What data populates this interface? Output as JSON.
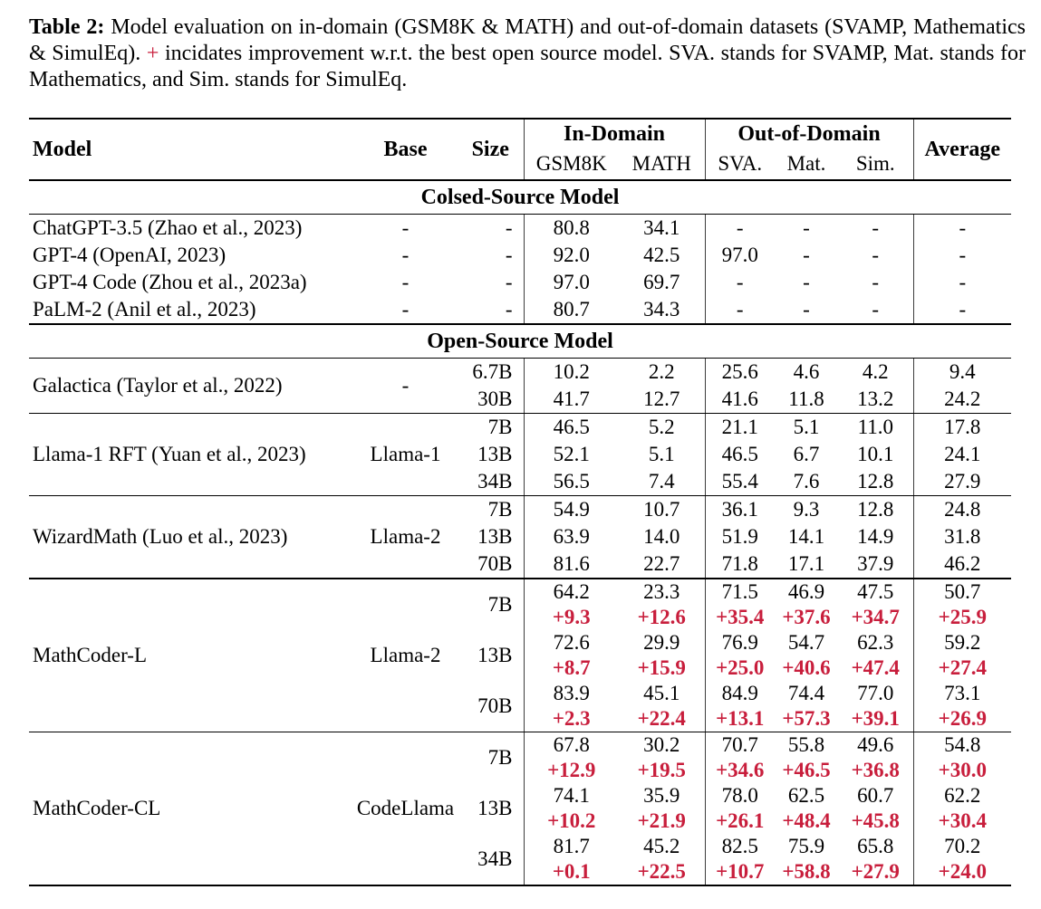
{
  "caption": {
    "label": "Table 2:",
    "before_plus": "Model evaluation on in-domain (GSM8K & MATH) and out-of-domain datasets (SVAMP, Mathematics & SimulEq).",
    "plus": "+",
    "after_plus": "incidates improvement w.r.t. the best open source model. SVA. stands for SVAMP, Mat. stands for Mathematics, and Sim. stands for SimulEq."
  },
  "colors": {
    "improvement_red": "#c81e3c",
    "text": "#000000",
    "rule": "#000000"
  },
  "table": {
    "header": {
      "model": "Model",
      "base": "Base",
      "size": "Size",
      "in_domain": "In-Domain",
      "out_of_domain": "Out-of-Domain",
      "average": "Average",
      "sub": {
        "gsm8k": "GSM8K",
        "math": "MATH",
        "sva": "SVA.",
        "mat": "Mat.",
        "sim": "Sim."
      }
    },
    "dataset_columns": [
      "GSM8K",
      "MATH",
      "SVA.",
      "Mat.",
      "Sim.",
      "Average"
    ],
    "sections": [
      {
        "title": "Colsed-Source Model",
        "groups": [
          {
            "model": "ChatGPT-3.5 (Zhao et al., 2023)",
            "base": "-",
            "rule_below": "none",
            "rows": [
              {
                "size": "-",
                "values": [
                  "80.8",
                  "34.1",
                  "-",
                  "-",
                  "-",
                  "-"
                ]
              }
            ]
          },
          {
            "model": "GPT-4 (OpenAI, 2023)",
            "base": "-",
            "rule_below": "none",
            "rows": [
              {
                "size": "-",
                "values": [
                  "92.0",
                  "42.5",
                  "97.0",
                  "-",
                  "-",
                  "-"
                ]
              }
            ]
          },
          {
            "model": "GPT-4 Code (Zhou et al., 2023a)",
            "base": "-",
            "rule_below": "none",
            "rows": [
              {
                "size": "-",
                "values": [
                  "97.0",
                  "69.7",
                  "-",
                  "-",
                  "-",
                  "-"
                ]
              }
            ]
          },
          {
            "model": "PaLM-2 (Anil et al., 2023)",
            "base": "-",
            "rule_below": "thick",
            "rows": [
              {
                "size": "-",
                "values": [
                  "80.7",
                  "34.3",
                  "-",
                  "-",
                  "-",
                  "-"
                ]
              }
            ]
          }
        ]
      },
      {
        "title": "Open-Source Model",
        "groups": [
          {
            "model": "Galactica (Taylor et al., 2022)",
            "base": "-",
            "rule_below": "thin",
            "rows": [
              {
                "size": "6.7B",
                "values": [
                  "10.2",
                  "2.2",
                  "25.6",
                  "4.6",
                  "4.2",
                  "9.4"
                ]
              },
              {
                "size": "30B",
                "values": [
                  "41.7",
                  "12.7",
                  "41.6",
                  "11.8",
                  "13.2",
                  "24.2"
                ]
              }
            ]
          },
          {
            "model": "Llama-1 RFT (Yuan et al., 2023)",
            "base": "Llama-1",
            "rule_below": "thin",
            "rows": [
              {
                "size": "7B",
                "values": [
                  "46.5",
                  "5.2",
                  "21.1",
                  "5.1",
                  "11.0",
                  "17.8"
                ]
              },
              {
                "size": "13B",
                "values": [
                  "52.1",
                  "5.1",
                  "46.5",
                  "6.7",
                  "10.1",
                  "24.1"
                ]
              },
              {
                "size": "34B",
                "values": [
                  "56.5",
                  "7.4",
                  "55.4",
                  "7.6",
                  "12.8",
                  "27.9"
                ]
              }
            ]
          },
          {
            "model": "WizardMath (Luo et al., 2023)",
            "base": "Llama-2",
            "rule_below": "thick",
            "rows": [
              {
                "size": "7B",
                "values": [
                  "54.9",
                  "10.7",
                  "36.1",
                  "9.3",
                  "12.8",
                  "24.8"
                ]
              },
              {
                "size": "13B",
                "values": [
                  "63.9",
                  "14.0",
                  "51.9",
                  "14.1",
                  "14.9",
                  "31.8"
                ]
              },
              {
                "size": "70B",
                "values": [
                  "81.6",
                  "22.7",
                  "71.8",
                  "17.1",
                  "37.9",
                  "46.2"
                ]
              }
            ]
          },
          {
            "model": "MathCoder-L",
            "base": "Llama-2",
            "rule_below": "thin",
            "rows": [
              {
                "size": "7B",
                "values": [
                  "64.2",
                  "23.3",
                  "71.5",
                  "46.9",
                  "47.5",
                  "50.7"
                ],
                "deltas": [
                  "+9.3",
                  "+12.6",
                  "+35.4",
                  "+37.6",
                  "+34.7",
                  "+25.9"
                ]
              },
              {
                "size": "13B",
                "values": [
                  "72.6",
                  "29.9",
                  "76.9",
                  "54.7",
                  "62.3",
                  "59.2"
                ],
                "deltas": [
                  "+8.7",
                  "+15.9",
                  "+25.0",
                  "+40.6",
                  "+47.4",
                  "+27.4"
                ]
              },
              {
                "size": "70B",
                "values": [
                  "83.9",
                  "45.1",
                  "84.9",
                  "74.4",
                  "77.0",
                  "73.1"
                ],
                "deltas": [
                  "+2.3",
                  "+22.4",
                  "+13.1",
                  "+57.3",
                  "+39.1",
                  "+26.9"
                ]
              }
            ]
          },
          {
            "model": "MathCoder-CL",
            "base": "CodeLlama",
            "rule_below": "xthick",
            "rows": [
              {
                "size": "7B",
                "values": [
                  "67.8",
                  "30.2",
                  "70.7",
                  "55.8",
                  "49.6",
                  "54.8"
                ],
                "deltas": [
                  "+12.9",
                  "+19.5",
                  "+34.6",
                  "+46.5",
                  "+36.8",
                  "+30.0"
                ]
              },
              {
                "size": "13B",
                "values": [
                  "74.1",
                  "35.9",
                  "78.0",
                  "62.5",
                  "60.7",
                  "62.2"
                ],
                "deltas": [
                  "+10.2",
                  "+21.9",
                  "+26.1",
                  "+48.4",
                  "+45.8",
                  "+30.4"
                ]
              },
              {
                "size": "34B",
                "values": [
                  "81.7",
                  "45.2",
                  "82.5",
                  "75.9",
                  "65.8",
                  "70.2"
                ],
                "deltas": [
                  "+0.1",
                  "+22.5",
                  "+10.7",
                  "+58.8",
                  "+27.9",
                  "+24.0"
                ]
              }
            ]
          }
        ]
      }
    ]
  }
}
